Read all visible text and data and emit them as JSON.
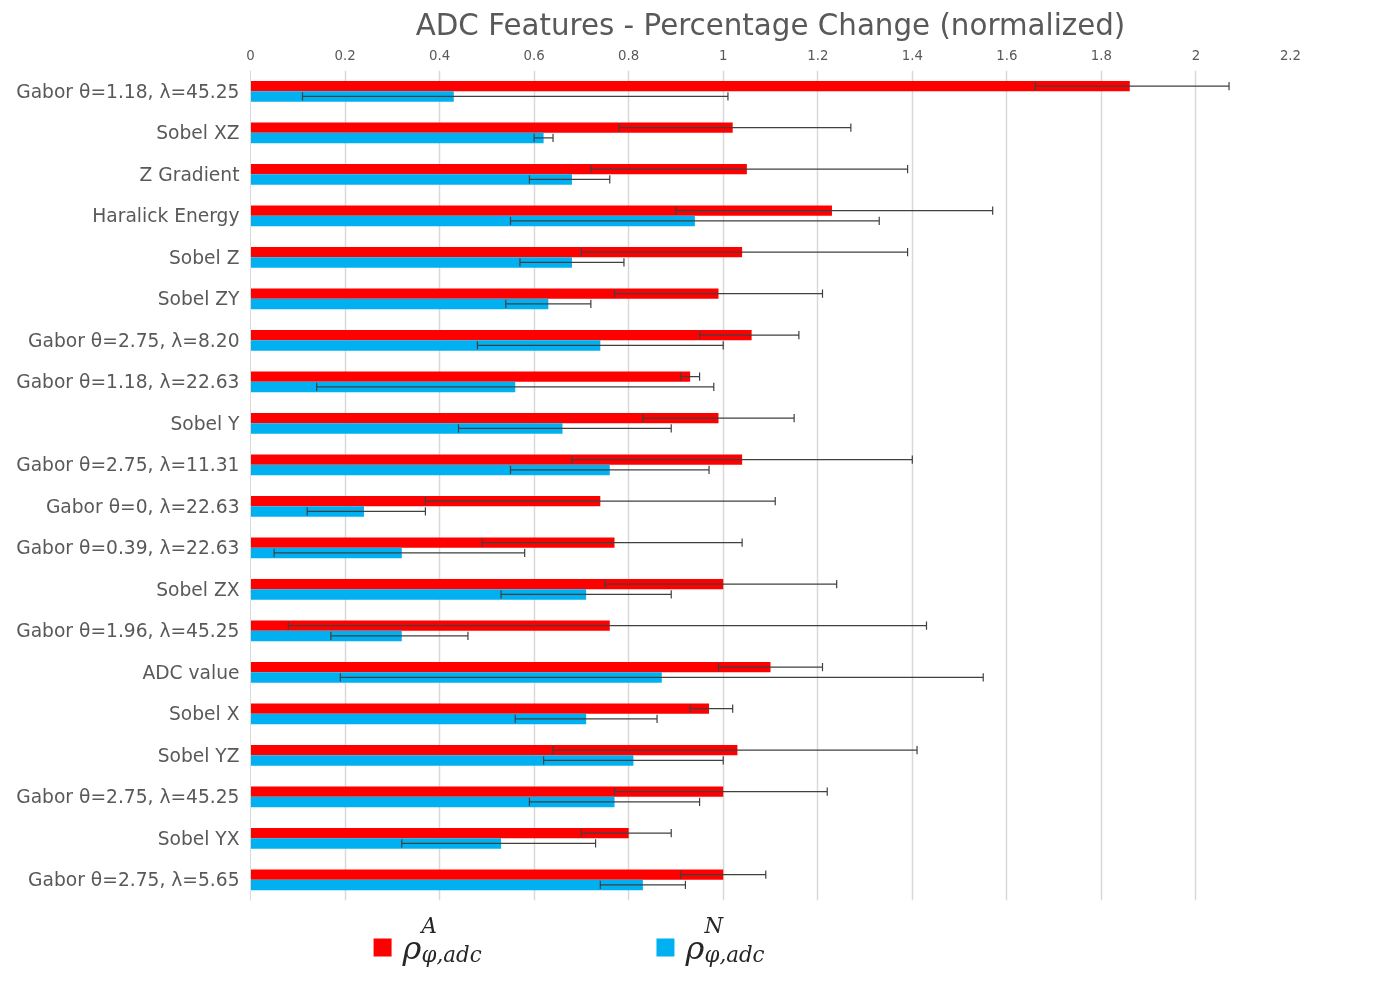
{
  "chart_data": {
    "type": "bar",
    "orientation": "horizontal",
    "title": "ADC Features - Percentage Change (normalized)",
    "categories": [
      "Gabor θ=1.18, λ=45.25",
      "Sobel XZ",
      "Z Gradient",
      "Haralick Energy",
      "Sobel Z",
      "Sobel ZY",
      "Gabor θ=2.75, λ=8.20",
      "Gabor θ=1.18, λ=22.63",
      "Sobel Y",
      "Gabor θ=2.75, λ=11.31",
      "Gabor θ=0, λ=22.63",
      "Gabor θ=0.39, λ=22.63",
      "Sobel ZX",
      "Gabor θ=1.96, λ=45.25",
      "ADC value",
      "Sobel X",
      "Sobel YZ",
      "Gabor θ=2.75, λ=45.25",
      "Sobel YX",
      "Gabor θ=2.75, λ=5.65"
    ],
    "series": [
      {
        "name": "ρ$^{A}$$_{φ,adc}$",
        "color": "#ff0000",
        "values": [
          1.86,
          1.02,
          1.05,
          1.23,
          1.04,
          0.99,
          1.06,
          0.93,
          0.99,
          1.04,
          0.74,
          0.77,
          1.0,
          0.76,
          1.1,
          0.97,
          1.03,
          1.0,
          0.8,
          1.0
        ],
        "errors": [
          [
            1.66,
            2.07
          ],
          [
            0.78,
            1.27
          ],
          [
            0.72,
            1.39
          ],
          [
            0.9,
            1.57
          ],
          [
            0.7,
            1.39
          ],
          [
            0.77,
            1.21
          ],
          [
            0.95,
            1.16
          ],
          [
            0.91,
            0.95
          ],
          [
            0.83,
            1.15
          ],
          [
            0.68,
            1.4
          ],
          [
            0.37,
            1.11
          ],
          [
            0.49,
            1.04
          ],
          [
            0.75,
            1.24
          ],
          [
            0.08,
            1.43
          ],
          [
            0.99,
            1.21
          ],
          [
            0.93,
            1.02
          ],
          [
            0.64,
            1.41
          ],
          [
            0.77,
            1.22
          ],
          [
            0.7,
            0.89
          ],
          [
            0.91,
            1.09
          ]
        ]
      },
      {
        "name": "ρ$^{N}$$_{φ,adc}$",
        "color": "#00b0f0",
        "values": [
          0.43,
          0.62,
          0.68,
          0.94,
          0.68,
          0.63,
          0.74,
          0.56,
          0.66,
          0.76,
          0.24,
          0.32,
          0.71,
          0.32,
          0.87,
          0.71,
          0.81,
          0.77,
          0.53,
          0.83
        ],
        "errors": [
          [
            0.11,
            1.01
          ],
          [
            0.6,
            0.64
          ],
          [
            0.59,
            0.76
          ],
          [
            0.55,
            1.33
          ],
          [
            0.57,
            0.79
          ],
          [
            0.54,
            0.72
          ],
          [
            0.48,
            1.0
          ],
          [
            0.14,
            0.98
          ],
          [
            0.44,
            0.89
          ],
          [
            0.55,
            0.97
          ],
          [
            0.12,
            0.37
          ],
          [
            0.05,
            0.58
          ],
          [
            0.53,
            0.89
          ],
          [
            0.17,
            0.46
          ],
          [
            0.19,
            1.55
          ],
          [
            0.56,
            0.86
          ],
          [
            0.62,
            1.0
          ],
          [
            0.59,
            0.95
          ],
          [
            0.32,
            0.73
          ],
          [
            0.74,
            0.92
          ]
        ]
      }
    ],
    "xlim": [
      0,
      2.2
    ],
    "xticks": [
      0,
      0.2,
      0.4,
      0.6,
      0.8,
      1,
      1.2,
      1.4,
      1.6,
      1.8,
      2,
      2.2
    ],
    "grid": "x",
    "legend": "bottom"
  }
}
